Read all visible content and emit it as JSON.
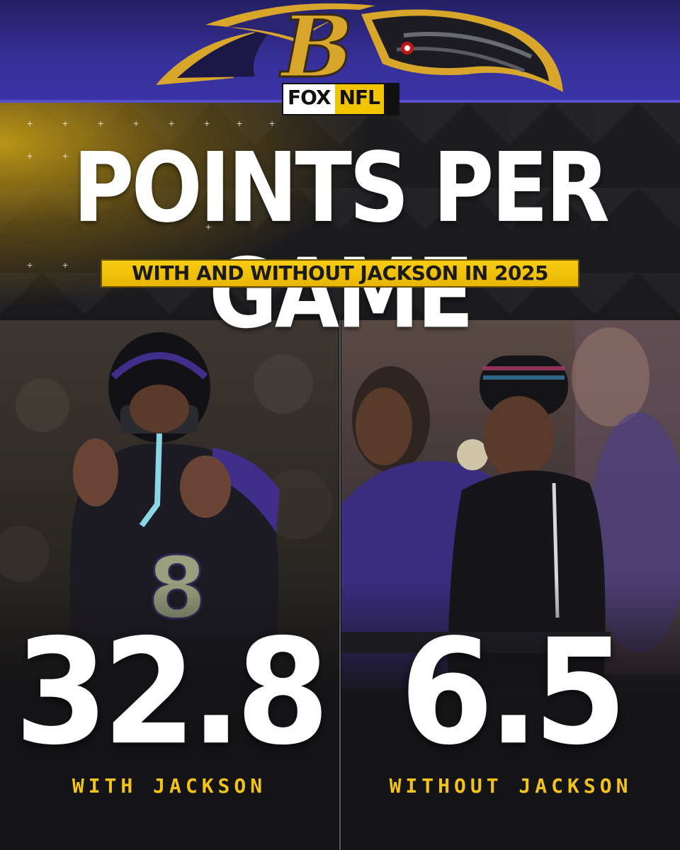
{
  "header": {
    "brand": "FOX NFL",
    "brand_parts": {
      "fox": "FOX",
      "nfl": "NFL"
    },
    "team_logo_icon": "ravens-b-logo"
  },
  "graphic": {
    "title": "POINTS PER GAME",
    "subtitle": "WITH AND WITHOUT JACKSON IN 2025"
  },
  "comparison": [
    {
      "value": "32.8",
      "label": "WITH JACKSON"
    },
    {
      "value": "6.5",
      "label": "WITHOUT JACKSON"
    }
  ],
  "colors": {
    "purple": "#37309a",
    "gold": "#f2c31a",
    "dark": "#151517",
    "white": "#ffffff"
  }
}
